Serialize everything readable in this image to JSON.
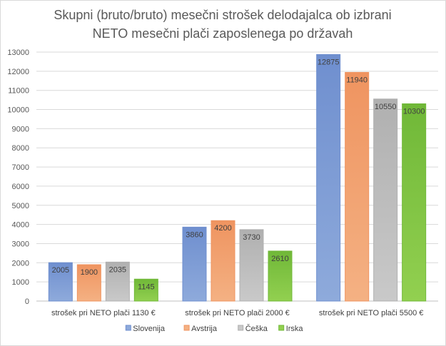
{
  "chart_data": {
    "type": "bar",
    "title": [
      "Skupni (bruto/bruto) mesečni strošek delodajalca ob izbrani",
      "NETO mesečni plači zaposlenega po državah"
    ],
    "categories": [
      "strošek pri NETO plači 1130 €",
      "strošek pri NETO plači 2000 €",
      "strošek pri NETO plači 5500 €"
    ],
    "series": [
      {
        "name": "Slovenija",
        "values": [
          2005,
          3860,
          12875
        ],
        "color": "#8eaadb",
        "colorDark": "#6f8fcf"
      },
      {
        "name": "Avstrija",
        "values": [
          1900,
          4200,
          11940
        ],
        "color": "#f4b183",
        "colorDark": "#ef9460"
      },
      {
        "name": "Češka",
        "values": [
          2035,
          3730,
          10550
        ],
        "color": "#c9c9c9",
        "colorDark": "#b0b0b0"
      },
      {
        "name": "Irska",
        "values": [
          1145,
          2610,
          10300
        ],
        "color": "#92d050",
        "colorDark": "#70b838"
      }
    ],
    "ylim": [
      0,
      13000
    ],
    "yticks": [
      0,
      1000,
      2000,
      3000,
      4000,
      5000,
      6000,
      7000,
      8000,
      9000,
      10000,
      11000,
      12000,
      13000
    ],
    "grid": true,
    "legend_position": "bottom"
  }
}
